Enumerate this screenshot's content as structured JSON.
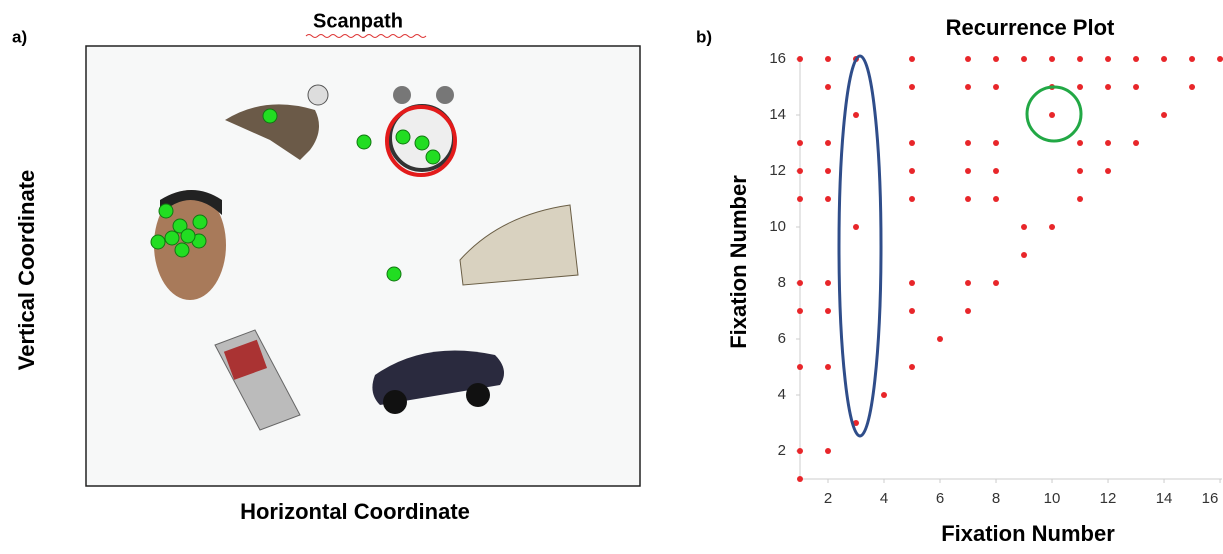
{
  "panels": {
    "left": {
      "letter": "a)",
      "title": "Scanpath",
      "y_label": "Vertical Coordinate",
      "x_label": "Horizontal Coordinate"
    },
    "right_letter": "b)"
  },
  "chart_data": {
    "type": "scatter",
    "title": "Recurrence Plot",
    "x_label": "Fixation Number",
    "y_label": "Fixation Number",
    "color": "#e8262a",
    "x": [
      1,
      2,
      3,
      5,
      7,
      8,
      9,
      10,
      11,
      12,
      13,
      14,
      15,
      16,
      2,
      5,
      7,
      8,
      10,
      11,
      12,
      13,
      15,
      3,
      10,
      14,
      1,
      2,
      5,
      7,
      8,
      11,
      12,
      13,
      1,
      2,
      5,
      7,
      8,
      11,
      12,
      1,
      2,
      5,
      7,
      8,
      11,
      3,
      9,
      10,
      9,
      1,
      2,
      5,
      7,
      8,
      1,
      2,
      5,
      7,
      6,
      1,
      2,
      5,
      4,
      3,
      1,
      2,
      1
    ],
    "values": [
      16,
      16,
      16,
      16,
      16,
      16,
      16,
      16,
      16,
      16,
      16,
      16,
      16,
      16,
      15,
      15,
      15,
      15,
      15,
      15,
      15,
      15,
      15,
      14,
      14,
      14,
      13,
      13,
      13,
      13,
      13,
      13,
      13,
      13,
      12,
      12,
      12,
      12,
      12,
      12,
      12,
      11,
      11,
      11,
      11,
      11,
      11,
      10,
      10,
      10,
      9,
      8,
      8,
      8,
      8,
      8,
      7,
      7,
      7,
      7,
      6,
      5,
      5,
      5,
      4,
      3,
      2,
      2,
      1
    ],
    "xlim": [
      1,
      16.07
    ],
    "ylim": [
      1,
      16
    ],
    "xticks": [
      2,
      4,
      6,
      8,
      10,
      12,
      14,
      16
    ],
    "yticks": [
      2,
      4,
      6,
      8,
      10,
      12,
      14,
      16
    ]
  }
}
